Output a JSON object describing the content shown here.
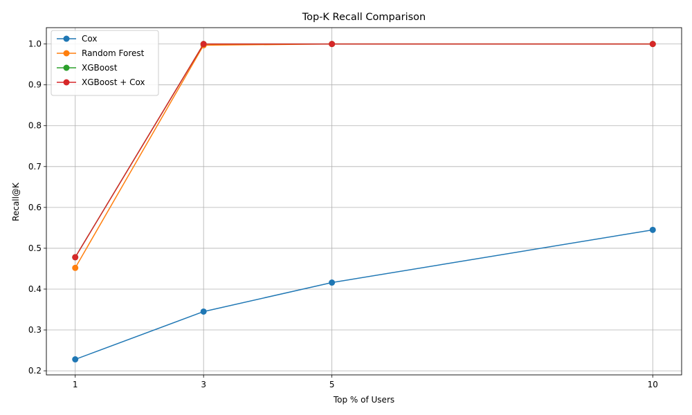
{
  "chart_data": {
    "type": "line",
    "title": "Top-K Recall Comparison",
    "xlabel": "Top % of Users",
    "ylabel": "Recall@K",
    "x": [
      1,
      3,
      5,
      10
    ],
    "x_tick_labels": [
      "1",
      "3",
      "5",
      "10"
    ],
    "xlim": [
      0.55,
      10.45
    ],
    "ylim": [
      0.19,
      1.04
    ],
    "y_ticks": [
      0.2,
      0.3,
      0.4,
      0.5,
      0.6,
      0.7,
      0.8,
      0.9,
      1.0
    ],
    "y_tick_labels": [
      "0.2",
      "0.3",
      "0.4",
      "0.5",
      "0.6",
      "0.7",
      "0.8",
      "0.9",
      "1.0"
    ],
    "grid": true,
    "legend_position": "top-left",
    "markers": "circle",
    "series": [
      {
        "name": "Cox",
        "color": "#1f77b4",
        "values": [
          0.228,
          0.345,
          0.416,
          0.545
        ]
      },
      {
        "name": "Random Forest",
        "color": "#ff7f0e",
        "values": [
          0.452,
          0.997,
          1.0,
          1.0
        ]
      },
      {
        "name": "XGBoost",
        "color": "#2ca02c",
        "values": [
          0.478,
          1.0,
          1.0,
          1.0
        ]
      },
      {
        "name": "XGBoost + Cox",
        "color": "#d62728",
        "values": [
          0.478,
          1.0,
          1.0,
          1.0
        ]
      }
    ]
  }
}
